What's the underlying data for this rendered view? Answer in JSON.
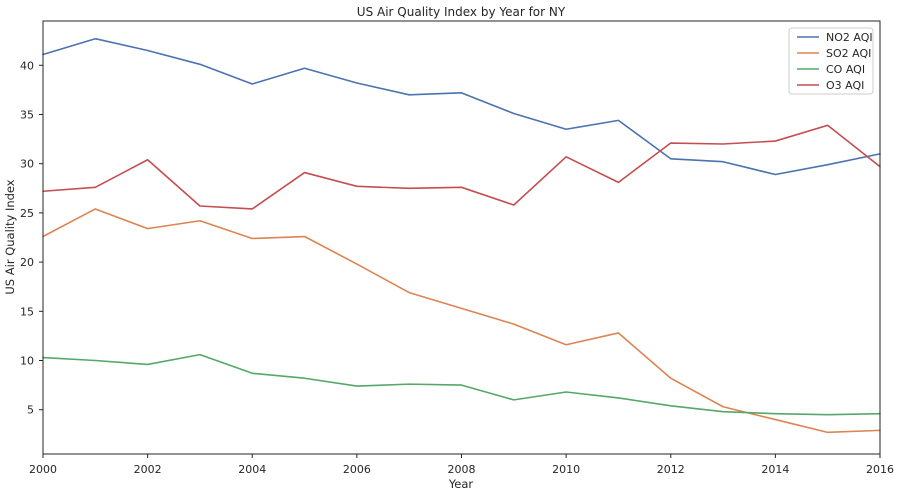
{
  "chart_data": {
    "type": "line",
    "title": "US Air Quality Index by Year for NY",
    "xlabel": "Year",
    "ylabel": "US Air Quality Index",
    "xlim": [
      2000,
      2016
    ],
    "ylim": [
      0.5,
      44.5
    ],
    "x_ticks": [
      2000,
      2002,
      2004,
      2006,
      2008,
      2010,
      2012,
      2014,
      2016
    ],
    "y_ticks": [
      5,
      10,
      15,
      20,
      25,
      30,
      35,
      40
    ],
    "grid": false,
    "legend_position": "top-right",
    "x": [
      2000,
      2001,
      2002,
      2003,
      2004,
      2005,
      2006,
      2007,
      2008,
      2009,
      2010,
      2011,
      2012,
      2013,
      2014,
      2015,
      2016
    ],
    "series": [
      {
        "name": "NO2 AQI",
        "color": "#4c72b0",
        "values": [
          41.1,
          42.7,
          41.5,
          40.1,
          38.1,
          39.7,
          38.2,
          37.0,
          37.2,
          35.1,
          33.5,
          34.4,
          30.5,
          30.2,
          28.9,
          29.9,
          31.0
        ]
      },
      {
        "name": "SO2 AQI",
        "color": "#dd8452",
        "values": [
          22.6,
          25.4,
          23.4,
          24.2,
          22.4,
          22.6,
          19.8,
          16.9,
          15.3,
          13.7,
          11.6,
          12.8,
          8.2,
          5.3,
          4.0,
          2.7,
          2.9
        ]
      },
      {
        "name": "CO AQI",
        "color": "#55a868",
        "values": [
          10.3,
          10.0,
          9.6,
          10.6,
          8.7,
          8.2,
          7.4,
          7.6,
          7.5,
          6.0,
          6.8,
          6.2,
          5.4,
          4.8,
          4.6,
          4.5,
          4.6
        ]
      },
      {
        "name": "O3 AQI",
        "color": "#c44e52",
        "values": [
          27.2,
          27.6,
          30.4,
          25.7,
          25.4,
          29.1,
          27.7,
          27.5,
          27.6,
          25.8,
          30.7,
          28.1,
          32.1,
          32.0,
          32.3,
          33.9,
          29.7
        ]
      }
    ]
  }
}
